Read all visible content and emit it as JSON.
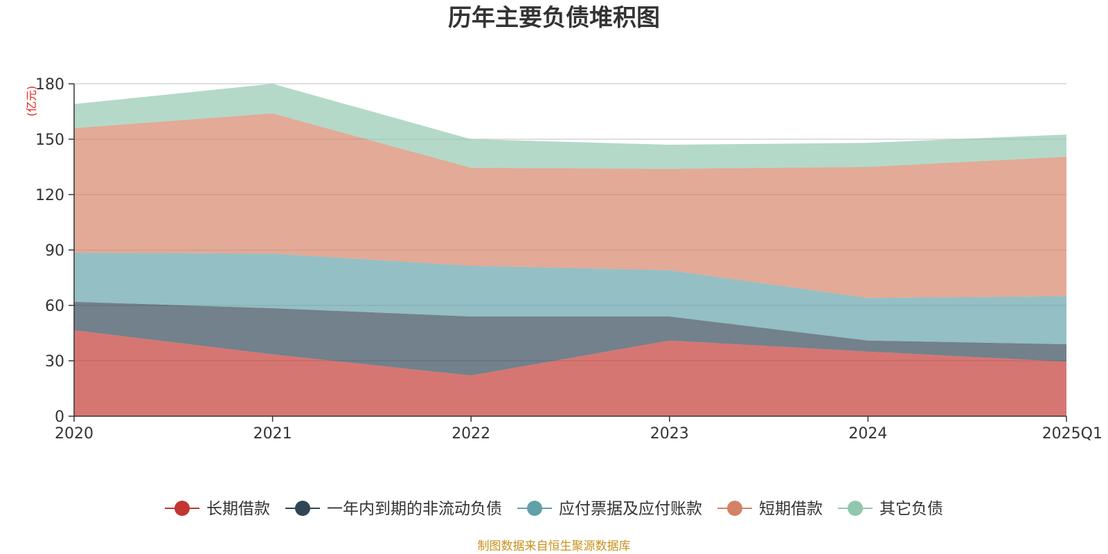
{
  "chart_data": {
    "type": "area",
    "stacked": true,
    "title": "历年主要负债堆积图",
    "unit_label": "(亿元)",
    "categories": [
      "2020",
      "2021",
      "2022",
      "2023",
      "2024",
      "2025Q1"
    ],
    "ylim": [
      0,
      180
    ],
    "yticks": [
      0,
      30,
      60,
      90,
      120,
      150,
      180
    ],
    "grid": true,
    "legend_position": "bottom",
    "series": [
      {
        "name": "长期借款",
        "color": "#c23531",
        "values": [
          46.5,
          33.5,
          22,
          41,
          35,
          29.5
        ]
      },
      {
        "name": "一年内到期的非流动负债",
        "color": "#2f4554",
        "values": [
          15.5,
          25,
          32,
          13,
          6,
          9.5
        ]
      },
      {
        "name": "应付票据及应付账款",
        "color": "#61a0a8",
        "values": [
          26.5,
          29.5,
          27.5,
          25,
          23,
          26
        ]
      },
      {
        "name": "短期借款",
        "color": "#d48265",
        "values": [
          67.5,
          76,
          53,
          55,
          71,
          75.5
        ]
      },
      {
        "name": "其它负债",
        "color": "#91c7ae",
        "values": [
          13,
          16,
          15.5,
          13,
          13,
          12
        ]
      }
    ],
    "source": "制图数据来自恒生聚源数据库"
  }
}
